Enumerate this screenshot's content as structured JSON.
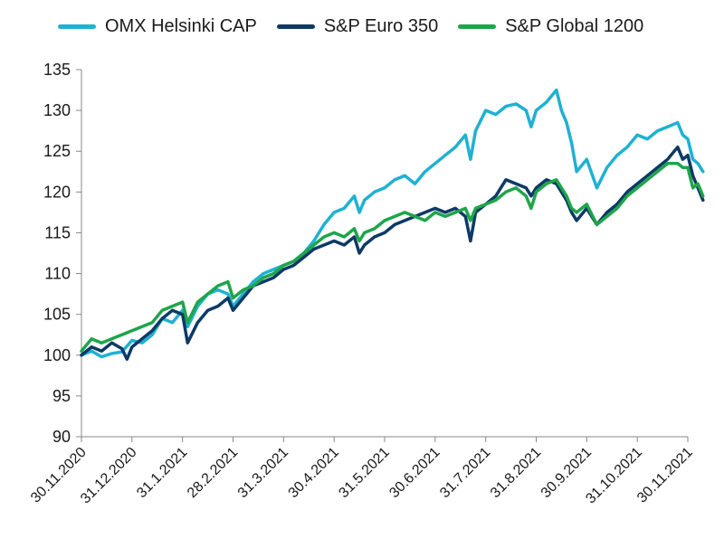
{
  "chart_data": {
    "type": "line",
    "title": "",
    "xlabel": "",
    "ylabel": "",
    "ylim": [
      90,
      135
    ],
    "yticks": [
      90,
      95,
      100,
      105,
      110,
      115,
      120,
      125,
      130,
      135
    ],
    "x_tick_labels": [
      "30.11.2020",
      "31.12.2020",
      "31.1.2021",
      "28.2.2021",
      "31.3.2021",
      "30.4.2021",
      "31.5.2021",
      "30.6.2021",
      "31.7.2021",
      "31.8.2021",
      "30.9.2021",
      "31.10.2021",
      "30.11.2021"
    ],
    "legend_position": "top",
    "grid": false,
    "x_unit": "months since 30.11.2020",
    "series": [
      {
        "name": "OMX Helsinki CAP",
        "color": "#1fb1d2",
        "points": [
          [
            0,
            100
          ],
          [
            0.2,
            100.5
          ],
          [
            0.4,
            99.8
          ],
          [
            0.6,
            100.2
          ],
          [
            0.8,
            100.4
          ],
          [
            1.0,
            101.8
          ],
          [
            1.2,
            101.5
          ],
          [
            1.4,
            102.5
          ],
          [
            1.6,
            104.5
          ],
          [
            1.8,
            104.0
          ],
          [
            2.0,
            105.5
          ],
          [
            2.1,
            103.5
          ],
          [
            2.3,
            106.0
          ],
          [
            2.5,
            107.5
          ],
          [
            2.7,
            108.0
          ],
          [
            2.9,
            107.5
          ],
          [
            3.0,
            106.0
          ],
          [
            3.2,
            107.5
          ],
          [
            3.4,
            109.0
          ],
          [
            3.6,
            110.0
          ],
          [
            3.8,
            110.5
          ],
          [
            4.0,
            111.0
          ],
          [
            4.2,
            111.5
          ],
          [
            4.4,
            112.5
          ],
          [
            4.6,
            114.0
          ],
          [
            4.8,
            116.0
          ],
          [
            5.0,
            117.5
          ],
          [
            5.2,
            118.0
          ],
          [
            5.4,
            119.5
          ],
          [
            5.5,
            117.5
          ],
          [
            5.6,
            119.0
          ],
          [
            5.8,
            120.0
          ],
          [
            6.0,
            120.5
          ],
          [
            6.2,
            121.5
          ],
          [
            6.4,
            122.0
          ],
          [
            6.6,
            121.0
          ],
          [
            6.8,
            122.5
          ],
          [
            7.0,
            123.5
          ],
          [
            7.2,
            124.5
          ],
          [
            7.4,
            125.5
          ],
          [
            7.6,
            127.0
          ],
          [
            7.7,
            124.0
          ],
          [
            7.8,
            127.5
          ],
          [
            8.0,
            130.0
          ],
          [
            8.2,
            129.5
          ],
          [
            8.4,
            130.5
          ],
          [
            8.6,
            130.8
          ],
          [
            8.8,
            130.0
          ],
          [
            8.9,
            128.0
          ],
          [
            9.0,
            130.0
          ],
          [
            9.2,
            131.0
          ],
          [
            9.4,
            132.5
          ],
          [
            9.5,
            130.0
          ],
          [
            9.6,
            128.5
          ],
          [
            9.7,
            126.0
          ],
          [
            9.8,
            122.5
          ],
          [
            10.0,
            124.0
          ],
          [
            10.2,
            120.5
          ],
          [
            10.4,
            123.0
          ],
          [
            10.6,
            124.5
          ],
          [
            10.8,
            125.5
          ],
          [
            11.0,
            127.0
          ],
          [
            11.2,
            126.5
          ],
          [
            11.4,
            127.5
          ],
          [
            11.6,
            128.0
          ],
          [
            11.8,
            128.5
          ],
          [
            11.9,
            127.0
          ],
          [
            12.0,
            126.5
          ],
          [
            12.1,
            124.0
          ],
          [
            12.2,
            123.5
          ],
          [
            12.3,
            122.5
          ]
        ]
      },
      {
        "name": "S&P Euro 350",
        "color": "#0d3a66",
        "points": [
          [
            0,
            100
          ],
          [
            0.2,
            101.0
          ],
          [
            0.4,
            100.5
          ],
          [
            0.6,
            101.5
          ],
          [
            0.8,
            100.8
          ],
          [
            0.9,
            99.5
          ],
          [
            1.0,
            101.0
          ],
          [
            1.2,
            102.0
          ],
          [
            1.4,
            103.0
          ],
          [
            1.6,
            104.5
          ],
          [
            1.8,
            105.5
          ],
          [
            2.0,
            105.0
          ],
          [
            2.1,
            101.5
          ],
          [
            2.3,
            104.0
          ],
          [
            2.5,
            105.5
          ],
          [
            2.7,
            106.0
          ],
          [
            2.9,
            107.0
          ],
          [
            3.0,
            105.5
          ],
          [
            3.2,
            107.0
          ],
          [
            3.4,
            108.5
          ],
          [
            3.6,
            109.0
          ],
          [
            3.8,
            109.5
          ],
          [
            4.0,
            110.5
          ],
          [
            4.2,
            111.0
          ],
          [
            4.4,
            112.0
          ],
          [
            4.6,
            113.0
          ],
          [
            4.8,
            113.5
          ],
          [
            5.0,
            114.0
          ],
          [
            5.2,
            113.5
          ],
          [
            5.4,
            114.5
          ],
          [
            5.5,
            112.5
          ],
          [
            5.6,
            113.5
          ],
          [
            5.8,
            114.5
          ],
          [
            6.0,
            115.0
          ],
          [
            6.2,
            116.0
          ],
          [
            6.4,
            116.5
          ],
          [
            6.6,
            117.0
          ],
          [
            6.8,
            117.5
          ],
          [
            7.0,
            118.0
          ],
          [
            7.2,
            117.5
          ],
          [
            7.4,
            118.0
          ],
          [
            7.6,
            117.0
          ],
          [
            7.7,
            114.0
          ],
          [
            7.8,
            117.5
          ],
          [
            8.0,
            118.5
          ],
          [
            8.2,
            119.5
          ],
          [
            8.4,
            121.5
          ],
          [
            8.6,
            121.0
          ],
          [
            8.8,
            120.5
          ],
          [
            8.9,
            119.5
          ],
          [
            9.0,
            120.5
          ],
          [
            9.2,
            121.5
          ],
          [
            9.4,
            121.0
          ],
          [
            9.5,
            120.0
          ],
          [
            9.6,
            119.0
          ],
          [
            9.7,
            117.5
          ],
          [
            9.8,
            116.5
          ],
          [
            10.0,
            118.0
          ],
          [
            10.2,
            116.0
          ],
          [
            10.4,
            117.5
          ],
          [
            10.6,
            118.5
          ],
          [
            10.8,
            120.0
          ],
          [
            11.0,
            121.0
          ],
          [
            11.2,
            122.0
          ],
          [
            11.4,
            123.0
          ],
          [
            11.6,
            124.0
          ],
          [
            11.8,
            125.5
          ],
          [
            11.9,
            124.0
          ],
          [
            12.0,
            124.5
          ],
          [
            12.1,
            122.0
          ],
          [
            12.2,
            120.5
          ],
          [
            12.3,
            119.0
          ]
        ]
      },
      {
        "name": "S&P Global 1200",
        "color": "#1fa54a",
        "points": [
          [
            0,
            100.5
          ],
          [
            0.2,
            102.0
          ],
          [
            0.4,
            101.5
          ],
          [
            0.6,
            102.0
          ],
          [
            0.8,
            102.5
          ],
          [
            1.0,
            103.0
          ],
          [
            1.2,
            103.5
          ],
          [
            1.4,
            104.0
          ],
          [
            1.6,
            105.5
          ],
          [
            1.8,
            106.0
          ],
          [
            2.0,
            106.5
          ],
          [
            2.1,
            104.0
          ],
          [
            2.3,
            106.5
          ],
          [
            2.5,
            107.5
          ],
          [
            2.7,
            108.5
          ],
          [
            2.9,
            109.0
          ],
          [
            3.0,
            107.0
          ],
          [
            3.2,
            108.0
          ],
          [
            3.4,
            108.5
          ],
          [
            3.6,
            109.5
          ],
          [
            3.8,
            110.0
          ],
          [
            4.0,
            111.0
          ],
          [
            4.2,
            111.5
          ],
          [
            4.4,
            112.5
          ],
          [
            4.6,
            113.5
          ],
          [
            4.8,
            114.5
          ],
          [
            5.0,
            115.0
          ],
          [
            5.2,
            114.5
          ],
          [
            5.4,
            115.5
          ],
          [
            5.5,
            114.0
          ],
          [
            5.6,
            115.0
          ],
          [
            5.8,
            115.5
          ],
          [
            6.0,
            116.5
          ],
          [
            6.2,
            117.0
          ],
          [
            6.4,
            117.5
          ],
          [
            6.6,
            117.0
          ],
          [
            6.8,
            116.5
          ],
          [
            7.0,
            117.5
          ],
          [
            7.2,
            117.0
          ],
          [
            7.4,
            117.5
          ],
          [
            7.6,
            118.0
          ],
          [
            7.7,
            116.5
          ],
          [
            7.8,
            118.0
          ],
          [
            8.0,
            118.5
          ],
          [
            8.2,
            119.0
          ],
          [
            8.4,
            120.0
          ],
          [
            8.6,
            120.5
          ],
          [
            8.8,
            119.5
          ],
          [
            8.9,
            118.0
          ],
          [
            9.0,
            120.0
          ],
          [
            9.2,
            121.0
          ],
          [
            9.4,
            121.5
          ],
          [
            9.5,
            120.5
          ],
          [
            9.6,
            119.5
          ],
          [
            9.7,
            118.0
          ],
          [
            9.8,
            117.5
          ],
          [
            10.0,
            118.5
          ],
          [
            10.2,
            116.0
          ],
          [
            10.4,
            117.0
          ],
          [
            10.6,
            118.0
          ],
          [
            10.8,
            119.5
          ],
          [
            11.0,
            120.5
          ],
          [
            11.2,
            121.5
          ],
          [
            11.4,
            122.5
          ],
          [
            11.6,
            123.5
          ],
          [
            11.8,
            123.5
          ],
          [
            11.9,
            123.0
          ],
          [
            12.0,
            123.0
          ],
          [
            12.1,
            120.5
          ],
          [
            12.2,
            121.0
          ],
          [
            12.3,
            119.5
          ]
        ]
      }
    ]
  }
}
